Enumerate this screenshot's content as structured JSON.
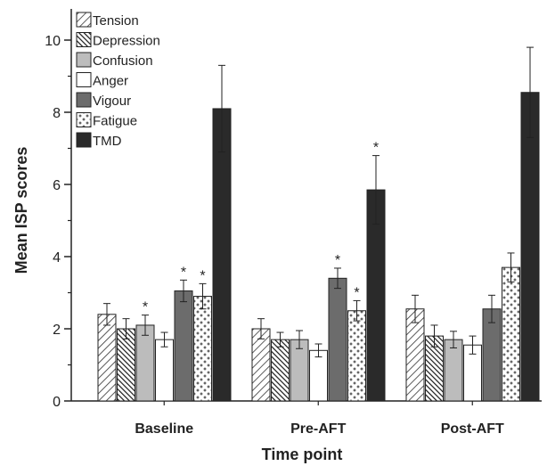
{
  "chart_data": {
    "type": "bar",
    "xlabel": "Time point",
    "ylabel": "Mean ISP scores",
    "ylim": [
      0,
      10
    ],
    "yticks": [
      "0",
      "2",
      "4",
      "6",
      "8",
      "10"
    ],
    "categories": [
      "Baseline",
      "Pre-AFT",
      "Post-AFT"
    ],
    "significance_marker": "*",
    "legend_position": "top-left",
    "series": [
      {
        "name": "Tension",
        "pattern": "diagonal-hatch",
        "values": [
          2.4,
          2.0,
          2.55
        ],
        "errors": [
          0.3,
          0.28,
          0.38
        ],
        "significant": [
          false,
          false,
          false
        ]
      },
      {
        "name": "Depression",
        "pattern": "dense-hatch",
        "values": [
          2.0,
          1.7,
          1.8
        ],
        "errors": [
          0.28,
          0.2,
          0.3
        ],
        "significant": [
          false,
          false,
          false
        ]
      },
      {
        "name": "Confusion",
        "pattern": "light-grey",
        "values": [
          2.1,
          1.7,
          1.7
        ],
        "errors": [
          0.28,
          0.25,
          0.23
        ],
        "significant": [
          true,
          false,
          false
        ]
      },
      {
        "name": "Anger",
        "pattern": "white",
        "values": [
          1.7,
          1.4,
          1.55
        ],
        "errors": [
          0.2,
          0.18,
          0.25
        ],
        "significant": [
          false,
          false,
          false
        ]
      },
      {
        "name": "Vigour",
        "pattern": "dark-grey",
        "values": [
          3.05,
          3.4,
          2.55
        ],
        "errors": [
          0.3,
          0.28,
          0.38
        ],
        "significant": [
          true,
          true,
          false
        ]
      },
      {
        "name": "Fatigue",
        "pattern": "cross-dots",
        "values": [
          2.9,
          2.5,
          3.7
        ],
        "errors": [
          0.35,
          0.28,
          0.4
        ],
        "significant": [
          true,
          true,
          false
        ]
      },
      {
        "name": "TMD",
        "pattern": "black",
        "values": [
          8.1,
          5.85,
          8.55
        ],
        "errors": [
          1.2,
          0.95,
          1.25
        ],
        "significant": [
          false,
          true,
          false
        ]
      }
    ]
  }
}
